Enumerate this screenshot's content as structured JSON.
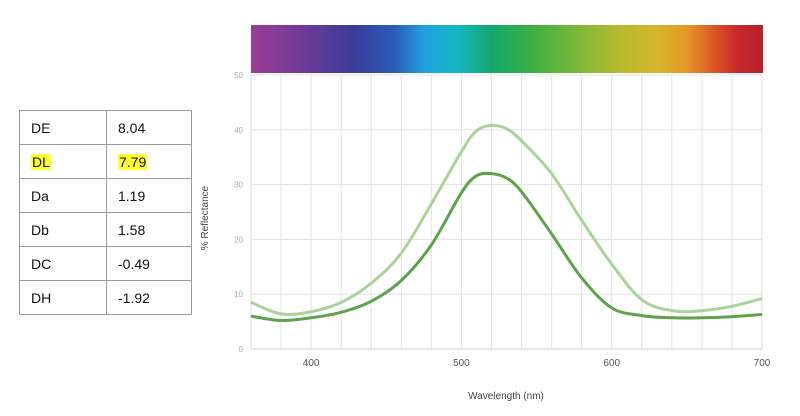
{
  "table": {
    "rows": [
      {
        "key": "DE",
        "value": "8.04",
        "highlight": false
      },
      {
        "key": "DL",
        "value": "7.79",
        "highlight": true
      },
      {
        "key": "Da",
        "value": "1.19",
        "highlight": false
      },
      {
        "key": "Db",
        "value": "1.58",
        "highlight": false
      },
      {
        "key": "DC",
        "value": "-0.49",
        "highlight": false
      },
      {
        "key": "DH",
        "value": "-1.92",
        "highlight": false
      }
    ],
    "highlight_color": "#ffff33"
  },
  "chart_data": {
    "type": "line",
    "title": "",
    "xlabel": "Wavelength (nm)",
    "ylabel": "% Reflectance",
    "xlim": [
      360,
      700
    ],
    "ylim": [
      0,
      50
    ],
    "xticks": [
      400,
      500,
      600,
      700
    ],
    "yticks": [
      0,
      10,
      20,
      30,
      40,
      50
    ],
    "grid": true,
    "legend": "none",
    "spectrum_bar": true,
    "series": [
      {
        "color": "#a9d39a",
        "x": [
          360,
          380,
          400,
          420,
          440,
          460,
          480,
          500,
          510,
          520,
          530,
          540,
          560,
          580,
          600,
          620,
          640,
          660,
          680,
          700
        ],
        "y": [
          8.5,
          6.4,
          6.8,
          8.5,
          12,
          17.5,
          26.5,
          36,
          39.8,
          40.8,
          40.2,
          38,
          32,
          23.5,
          15.5,
          9,
          7,
          7,
          7.8,
          9.2
        ]
      },
      {
        "color": "#5ea24b",
        "x": [
          360,
          380,
          400,
          420,
          440,
          460,
          480,
          500,
          510,
          520,
          530,
          540,
          560,
          580,
          600,
          620,
          640,
          660,
          680,
          700
        ],
        "y": [
          6,
          5.2,
          5.7,
          6.7,
          8.7,
          12.5,
          19,
          28.5,
          31.6,
          32,
          31.2,
          28.7,
          21,
          13,
          7.5,
          6.1,
          5.7,
          5.7,
          5.9,
          6.3
        ]
      }
    ]
  }
}
